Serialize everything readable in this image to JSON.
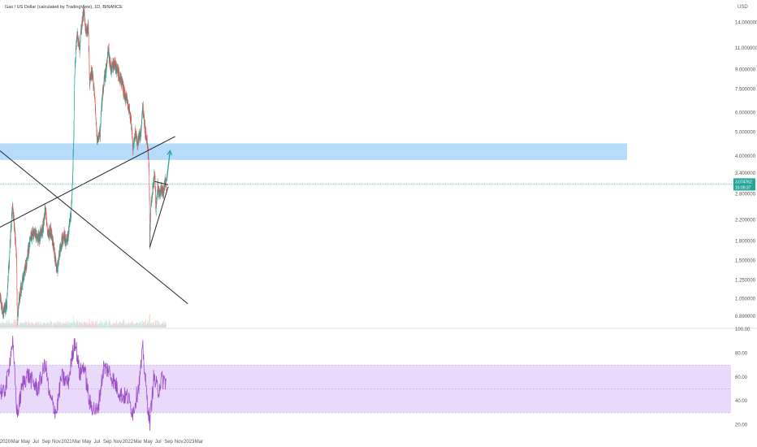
{
  "header": {
    "title": "Gas / US Dollar (calculated by TradingView), 1D, BINANCE"
  },
  "colors": {
    "up": "#26a69a",
    "down": "#ef5350",
    "trendline": "#222222",
    "zone": "#90caf9",
    "arrow": "#26a69a",
    "rsi_line": "#9c4fc7",
    "rsi_band": "#e9d9fb",
    "price_tag": "#26a69a"
  },
  "price_tag": {
    "value": "3.074762",
    "countdown": "16:09:37"
  },
  "chart_data": [
    {
      "type": "candlestick",
      "currency": "USD",
      "scale": "log",
      "ylim": [
        0.8,
        16.5
      ],
      "y_ticks": [
        "14.000000",
        "11.000000",
        "9.000000",
        "7.500000",
        "6.000000",
        "5.000000",
        "4.000000",
        "3.400000",
        "2.800000",
        "2.200000",
        "1.800000",
        "1.500000",
        "1.250000",
        "1.050000",
        "0.890000"
      ],
      "y_tick_values": [
        14.0,
        11.0,
        9.0,
        7.5,
        6.0,
        5.0,
        4.0,
        3.4,
        2.8,
        2.2,
        1.8,
        1.5,
        1.25,
        1.05,
        0.89
      ],
      "x_ticks": [
        "2020",
        "Mar",
        "May",
        "Jul",
        "Sep",
        "Nov",
        "2021",
        "Mar",
        "May",
        "Jul",
        "Sep",
        "Nov",
        "2022",
        "Mar",
        "May",
        "Jul",
        "Sep",
        "Nov",
        "2023",
        "Mar"
      ],
      "x_tick_dates": [
        "2020-01-01",
        "2020-03-01",
        "2020-05-01",
        "2020-07-01",
        "2020-09-01",
        "2020-11-01",
        "2021-01-01",
        "2021-03-01",
        "2021-05-01",
        "2021-07-01",
        "2021-09-01",
        "2021-11-01",
        "2022-01-01",
        "2022-03-01",
        "2022-05-01",
        "2022-07-01",
        "2022-09-01",
        "2022-11-01",
        "2023-01-01",
        "2023-03-01"
      ],
      "price_path": [
        [
          "2019-12-01",
          1.05
        ],
        [
          "2019-12-20",
          0.92
        ],
        [
          "2020-01-10",
          1.0
        ],
        [
          "2020-01-25",
          1.5
        ],
        [
          "2020-02-14",
          2.5
        ],
        [
          "2020-02-25",
          2.05
        ],
        [
          "2020-03-08",
          1.6
        ],
        [
          "2020-03-13",
          0.85
        ],
        [
          "2020-03-25",
          1.05
        ],
        [
          "2020-04-15",
          1.25
        ],
        [
          "2020-05-10",
          1.5
        ],
        [
          "2020-06-01",
          1.85
        ],
        [
          "2020-06-25",
          1.95
        ],
        [
          "2020-07-20",
          1.85
        ],
        [
          "2020-08-15",
          2.05
        ],
        [
          "2020-08-28",
          2.5
        ],
        [
          "2020-09-10",
          1.9
        ],
        [
          "2020-09-30",
          2.0
        ],
        [
          "2020-10-20",
          1.6
        ],
        [
          "2020-11-05",
          1.35
        ],
        [
          "2020-11-25",
          1.7
        ],
        [
          "2020-12-15",
          1.9
        ],
        [
          "2021-01-01",
          1.75
        ],
        [
          "2021-01-15",
          2.0
        ],
        [
          "2021-01-28",
          2.4
        ],
        [
          "2021-02-06",
          3.2
        ],
        [
          "2021-02-13",
          5.0
        ],
        [
          "2021-02-20",
          9.5
        ],
        [
          "2021-03-05",
          12.5
        ],
        [
          "2021-03-20",
          11.0
        ],
        [
          "2021-04-05",
          14.5
        ],
        [
          "2021-04-15",
          15.5
        ],
        [
          "2021-04-28",
          12.5
        ],
        [
          "2021-05-10",
          13.5
        ],
        [
          "2021-05-18",
          8.0
        ],
        [
          "2021-06-01",
          9.0
        ],
        [
          "2021-06-20",
          6.5
        ],
        [
          "2021-07-03",
          4.5
        ],
        [
          "2021-07-20",
          5.0
        ],
        [
          "2021-08-05",
          7.5
        ],
        [
          "2021-08-25",
          9.0
        ],
        [
          "2021-09-07",
          11.0
        ],
        [
          "2021-09-20",
          9.0
        ],
        [
          "2021-10-10",
          9.5
        ],
        [
          "2021-11-01",
          8.8
        ],
        [
          "2021-11-25",
          8.0
        ],
        [
          "2021-12-10",
          7.2
        ],
        [
          "2021-12-31",
          6.5
        ],
        [
          "2022-01-20",
          5.5
        ],
        [
          "2022-02-01",
          4.2
        ],
        [
          "2022-02-15",
          5.0
        ],
        [
          "2022-03-01",
          4.5
        ],
        [
          "2022-03-20",
          5.0
        ],
        [
          "2022-04-01",
          6.3
        ],
        [
          "2022-04-15",
          5.0
        ],
        [
          "2022-04-28",
          4.5
        ],
        [
          "2022-05-08",
          3.5
        ],
        [
          "2022-05-12",
          1.75
        ],
        [
          "2022-05-20",
          2.6
        ],
        [
          "2022-06-01",
          3.0
        ],
        [
          "2022-06-10",
          3.4
        ],
        [
          "2022-06-18",
          2.4
        ],
        [
          "2022-06-28",
          3.0
        ],
        [
          "2022-07-10",
          2.7
        ],
        [
          "2022-07-20",
          3.0
        ],
        [
          "2022-08-01",
          2.8
        ],
        [
          "2022-08-10",
          3.1
        ],
        [
          "2022-08-18",
          3.07
        ]
      ],
      "resistance_zone": [
        3.85,
        4.5
      ],
      "trendlines": [
        {
          "from": [
            "2019-12-01",
            4.2
          ],
          "to": [
            "2022-12-25",
            1.0
          ]
        },
        {
          "from": [
            "2019-12-01",
            2.05
          ],
          "to": [
            "2022-10-10",
            4.8
          ]
        },
        {
          "from": [
            "2022-05-12",
            1.7
          ],
          "to": [
            "2022-08-30",
            3.0
          ]
        },
        {
          "from": [
            "2022-06-10",
            3.15
          ],
          "to": [
            "2022-08-30",
            3.05
          ]
        }
      ],
      "projection_arrow": {
        "from": [
          "2022-08-20",
          3.15
        ],
        "to": [
          "2022-09-10",
          4.2
        ]
      }
    },
    {
      "type": "line",
      "indicator": "RSI",
      "ylim": [
        15,
        100
      ],
      "y_ticks": [
        "100.00",
        "80.00",
        "60.00",
        "40.00",
        "20.00"
      ],
      "y_tick_values": [
        100,
        80,
        60,
        40,
        20
      ],
      "band": [
        30,
        70
      ],
      "midline": 50,
      "path": [
        [
          "2019-12-01",
          50
        ],
        [
          "2019-12-20",
          45
        ],
        [
          "2020-01-10",
          55
        ],
        [
          "2020-02-14",
          90
        ],
        [
          "2020-03-13",
          28
        ],
        [
          "2020-04-15",
          55
        ],
        [
          "2020-05-15",
          62
        ],
        [
          "2020-06-15",
          55
        ],
        [
          "2020-07-15",
          50
        ],
        [
          "2020-08-28",
          72
        ],
        [
          "2020-09-20",
          44
        ],
        [
          "2020-11-01",
          30
        ],
        [
          "2020-12-01",
          60
        ],
        [
          "2021-01-10",
          55
        ],
        [
          "2021-02-20",
          92
        ],
        [
          "2021-03-20",
          62
        ],
        [
          "2021-04-15",
          70
        ],
        [
          "2021-05-18",
          38
        ],
        [
          "2021-07-03",
          30
        ],
        [
          "2021-08-10",
          68
        ],
        [
          "2021-09-07",
          66
        ],
        [
          "2021-10-15",
          55
        ],
        [
          "2021-11-20",
          45
        ],
        [
          "2022-01-01",
          43
        ],
        [
          "2022-02-01",
          30
        ],
        [
          "2022-03-10",
          55
        ],
        [
          "2022-04-01",
          83
        ],
        [
          "2022-04-20",
          50
        ],
        [
          "2022-05-12",
          21
        ],
        [
          "2022-06-05",
          60
        ],
        [
          "2022-07-01",
          48
        ],
        [
          "2022-07-20",
          58
        ],
        [
          "2022-08-18",
          56
        ]
      ]
    }
  ]
}
